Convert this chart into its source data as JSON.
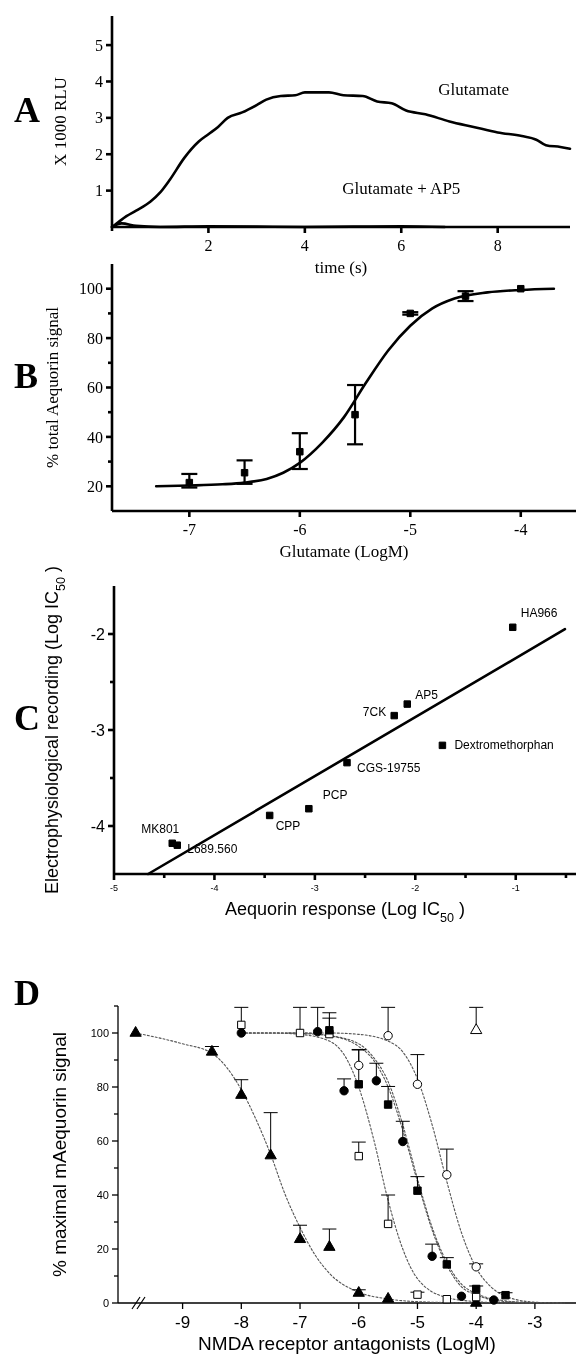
{
  "chart_data": [
    {
      "type": "line",
      "title": "A",
      "xlabel": "time (s)",
      "ylabel": "X 1000 RLU",
      "xlim": [
        0,
        9.5
      ],
      "ylim": [
        0,
        5.8
      ],
      "xticks": [
        {
          "value": 0,
          "label": null
        },
        2,
        4,
        6,
        8
      ],
      "yticks": [
        1,
        2,
        3,
        4,
        5
      ],
      "legend": false,
      "grid": false,
      "series": [
        {
          "name": "Glutamate",
          "color": "#000000",
          "x": [
            0,
            0.1,
            0.3,
            0.5,
            0.8,
            1.0,
            1.2,
            1.5,
            1.8,
            2.0,
            2.2,
            2.4,
            2.7,
            3.0,
            3.2,
            3.5,
            3.8,
            4.0,
            4.5,
            4.8,
            5.2,
            5.5,
            5.8,
            6.1,
            6.5,
            7.0,
            7.5,
            8.0,
            8.5,
            8.8,
            9.0,
            9.3,
            9.5
          ],
          "values": [
            0,
            0.1,
            0.3,
            0.45,
            0.7,
            0.95,
            1.3,
            1.9,
            2.35,
            2.55,
            2.75,
            3.0,
            3.15,
            3.35,
            3.5,
            3.6,
            3.62,
            3.7,
            3.7,
            3.62,
            3.6,
            3.45,
            3.4,
            3.2,
            3.1,
            2.9,
            2.75,
            2.6,
            2.5,
            2.4,
            2.25,
            2.2,
            2.15
          ]
        },
        {
          "name": "Glutamate + AP5",
          "color": "#000000",
          "x": [
            0,
            0.2,
            0.5,
            1,
            2,
            3,
            4,
            5,
            6,
            6.9
          ],
          "values": [
            0,
            0.1,
            0.03,
            0,
            0.02,
            0.01,
            0,
            0.01,
            0.02,
            0
          ]
        }
      ]
    },
    {
      "type": "scatter",
      "title": "B",
      "xlabel": "Glutamate (LogM)",
      "ylabel": "% total Aequorin signal",
      "xlim": [
        -7.7,
        -3.5
      ],
      "ylim": [
        10,
        110
      ],
      "xticks": [
        -7,
        -6,
        -5,
        -4
      ],
      "yticks": [
        20,
        {
          "value": 30,
          "label": null
        },
        40,
        {
          "value": 50,
          "label": null
        },
        60,
        {
          "value": 70,
          "label": null
        },
        80,
        {
          "value": 90,
          "label": null
        },
        100
      ],
      "legend": false,
      "grid": false,
      "series": [
        {
          "color": "#000000",
          "marker": "square",
          "x": [
            -7,
            -6.5,
            -6,
            -5.5,
            -5,
            -4.5,
            -4
          ],
          "values": [
            21.5,
            25.5,
            34,
            49,
            90,
            97,
            100
          ],
          "errors": [
            [
              19.5,
              25
            ],
            [
              21,
              30.5
            ],
            [
              27,
              41.5
            ],
            [
              37,
              61
            ],
            [
              89.5,
              90.5
            ],
            [
              95,
              99
            ],
            null
          ]
        },
        {
          "type": "line",
          "color": "#000000",
          "line_style": "solid",
          "x": [
            -7.3,
            -7,
            -6.7,
            -6.5,
            -6.3,
            -6.15,
            -6,
            -5.8,
            -5.6,
            -5.4,
            -5.2,
            -5,
            -4.8,
            -4.6,
            -4.3,
            -4,
            -3.7
          ],
          "values": [
            20,
            20.3,
            20.8,
            21.5,
            23,
            25.5,
            29.5,
            37.5,
            48,
            62,
            75,
            85,
            92,
            96,
            98.5,
            99.5,
            100
          ]
        }
      ]
    },
    {
      "type": "scatter",
      "title": "C",
      "xlabel": "Aequorin response (Log IC$_{50}$ )",
      "ylabel": "Electrophysiological recording (Log IC$_{50}$ )",
      "xlim": [
        -5,
        -0.4
      ],
      "ylim": [
        -4.5,
        -1.5
      ],
      "xticks": [
        -5,
        {
          "value": -4.5,
          "label": null
        },
        -4,
        {
          "value": -3.5,
          "label": null
        },
        -3,
        {
          "value": -2.5,
          "label": null
        },
        -2,
        {
          "value": -1.5,
          "label": null
        },
        -1,
        {
          "value": -0.5,
          "label": null
        }
      ],
      "yticks": [
        -4,
        {
          "value": -3.5,
          "label": null
        },
        -3,
        {
          "value": -2.5,
          "label": null
        },
        -2
      ],
      "legend": false,
      "grid": false,
      "series": [
        {
          "color": "#000000",
          "marker": "square",
          "x": [
            -4.42,
            -4.37,
            -3.45,
            -3.06,
            -2.68,
            -2.21,
            -2.08,
            -1.73,
            -1.03
          ],
          "values": [
            -4.18,
            -4.2,
            -3.89,
            -3.82,
            -3.34,
            -2.85,
            -2.73,
            -3.16,
            -1.93
          ]
        },
        {
          "type": "line",
          "color": "#000000",
          "line_style": "solid",
          "x": [
            -4.66,
            -0.51
          ],
          "values": [
            -4.5,
            -1.95
          ]
        }
      ],
      "annotations": [
        {
          "text": "MK801",
          "x": -4.42,
          "y": -4.18
        },
        {
          "text": "L689.560",
          "x": -4.37,
          "y": -4.2
        },
        {
          "text": "CPP",
          "x": -3.45,
          "y": -3.89
        },
        {
          "text": "PCP",
          "x": -3.06,
          "y": -3.82
        },
        {
          "text": "CGS-19755",
          "x": -2.68,
          "y": -3.34
        },
        {
          "text": "7CK",
          "x": -2.21,
          "y": -2.85
        },
        {
          "text": "AP5",
          "x": -2.08,
          "y": -2.73
        },
        {
          "text": "Dextromethorphan",
          "x": -1.73,
          "y": -3.16
        },
        {
          "text": "HA966",
          "x": -1.03,
          "y": -1.93
        }
      ]
    },
    {
      "type": "scatter",
      "title": "D",
      "xlabel": "NMDA receptor antagonists  (LogM)",
      "ylabel": "% maximal mAequorin signal",
      "xlim": [
        -10.1,
        -2.3
      ],
      "ylim": [
        0,
        110
      ],
      "xticks": [
        -9,
        -8,
        -7,
        -6,
        -5,
        -4,
        -3
      ],
      "yticks": [
        0,
        {
          "value": 10,
          "label": null
        },
        20,
        {
          "value": 30,
          "label": null
        },
        40,
        {
          "value": 50,
          "label": null
        },
        60,
        {
          "value": 70,
          "label": null
        },
        80,
        {
          "value": 90,
          "label": null
        },
        100,
        {
          "value": 110,
          "label": null
        }
      ],
      "legend": false,
      "grid": false,
      "series": [
        {
          "color": "#000000",
          "marker": "triangle",
          "x": [
            -9.8,
            -8.5,
            -8,
            -7.5,
            -7,
            -6.5,
            -6,
            -5.5,
            -4
          ],
          "values": [
            100,
            93,
            77,
            54.6,
            23.6,
            20.7,
            3.7,
            1.5,
            0
          ],
          "errors": [
            null,
            [
              93,
              95
            ],
            [
              77,
              82.7
            ],
            [
              54.6,
              70.5
            ],
            [
              23.6,
              28.8
            ],
            [
              20.7,
              27.4
            ],
            [
              3.7,
              4.9
            ],
            null,
            null
          ]
        },
        {
          "color": "#ffffff",
          "marker": "square",
          "x": [
            -8,
            -7,
            -6.5,
            -6,
            -5.5,
            -5,
            -4.5,
            -4
          ],
          "values": [
            103,
            100,
            99.6,
            54.4,
            29.3,
            3.1,
            1.4,
            2.2
          ],
          "errors": [
            [
              103,
              109.5
            ],
            [
              100,
              109.5
            ],
            [
              99.6,
              105.5
            ],
            [
              54.4,
              59.6
            ],
            [
              29.3,
              40
            ],
            [
              3.1,
              4
            ],
            null,
            null
          ]
        },
        {
          "color": "#000000",
          "marker": "circle",
          "x": [
            -8,
            -6.7,
            -6.25,
            -5.7,
            -5.25,
            -4.75,
            -4.25,
            -3.7
          ],
          "values": [
            100,
            100.5,
            78.6,
            82.3,
            59.8,
            17.3,
            2.5,
            1.1
          ],
          "errors": [
            null,
            [
              100.5,
              109.5
            ],
            [
              78.6,
              83
            ],
            [
              82.3,
              88.8
            ],
            [
              59.8,
              67.3
            ],
            [
              17.3,
              21.8
            ],
            null,
            null
          ]
        },
        {
          "color": "#000000",
          "marker": "square",
          "x": [
            -6.5,
            -6,
            -5.5,
            -5,
            -4.5,
            -4,
            -3.5
          ],
          "values": [
            101,
            81,
            73.5,
            41.6,
            14.3,
            5.2,
            2.9
          ],
          "errors": [
            [
              101,
              107.5
            ],
            [
              81,
              93.9
            ],
            [
              73.5,
              80.2
            ],
            [
              41.6,
              46.8
            ],
            [
              14.3,
              16.8
            ],
            [
              5.2,
              6.3
            ],
            [
              2.9,
              3.8
            ]
          ]
        },
        {
          "color": "#ffffff",
          "marker": "circle",
          "x": [
            -6,
            -5.5,
            -5,
            -4.5,
            -4
          ],
          "values": [
            88,
            99,
            81,
            47.5,
            13.4
          ],
          "errors": [
            [
              88,
              93.7
            ],
            [
              99,
              109.5
            ],
            [
              81,
              92
            ],
            [
              47.5,
              57
            ],
            [
              13.4,
              14.5
            ]
          ]
        },
        {
          "color": "#ffffff",
          "marker": "triangle",
          "x": [
            -4
          ],
          "values": [
            101
          ],
          "errors": [
            [
              101,
              109.5
            ]
          ]
        },
        {
          "type": "line",
          "color": "#555555",
          "line_style": "dotted",
          "x": [
            -9.8,
            -9,
            -8.5,
            -8,
            -7.75,
            -7.5,
            -7.25,
            -7,
            -6.75,
            -6.5,
            -6,
            -5.5,
            -5,
            -4
          ],
          "values": [
            100,
            96,
            92.5,
            79,
            68,
            55,
            40,
            28,
            18,
            11,
            4,
            1.5,
            0.5,
            0
          ]
        },
        {
          "type": "line",
          "color": "#555555",
          "line_style": "dotted",
          "x": [
            -8,
            -7.5,
            -7,
            -6.5,
            -6.25,
            -6,
            -5.75,
            -5.5,
            -5.25,
            -5,
            -4.5,
            -4,
            -3.5
          ],
          "values": [
            100,
            100,
            99.5,
            97,
            92,
            80,
            61,
            38,
            20,
            9,
            2,
            0.5,
            0
          ]
        },
        {
          "type": "line",
          "color": "#555555",
          "line_style": "dotted",
          "x": [
            -8,
            -7,
            -6.5,
            -6,
            -5.75,
            -5.5,
            -5.25,
            -5,
            -4.75,
            -4.5,
            -4.25,
            -4,
            -3.5,
            -3
          ],
          "values": [
            100,
            100,
            99,
            95,
            90,
            80,
            64,
            45,
            27,
            14,
            6,
            3,
            0.5,
            0
          ]
        },
        {
          "type": "line",
          "color": "#555555",
          "line_style": "dotted",
          "x": [
            -7.2,
            -6.5,
            -6,
            -5.75,
            -5.5,
            -5.25,
            -5,
            -4.75,
            -4.5,
            -4.25,
            -4,
            -3.5,
            -3.2
          ],
          "values": [
            100,
            99,
            96,
            91,
            82,
            66,
            46,
            28,
            15,
            7,
            3.5,
            0.8,
            0.3
          ]
        },
        {
          "type": "line",
          "color": "#555555",
          "line_style": "dotted",
          "x": [
            -8,
            -6.5,
            -6,
            -5.5,
            -5.25,
            -5,
            -4.75,
            -4.5,
            -4.25,
            -4,
            -3.75,
            -3.5,
            -3,
            -2.5
          ],
          "values": [
            100,
            100,
            99.5,
            97,
            93,
            83,
            66,
            45,
            26,
            13,
            6,
            2.5,
            0.3,
            0
          ]
        }
      ]
    }
  ]
}
